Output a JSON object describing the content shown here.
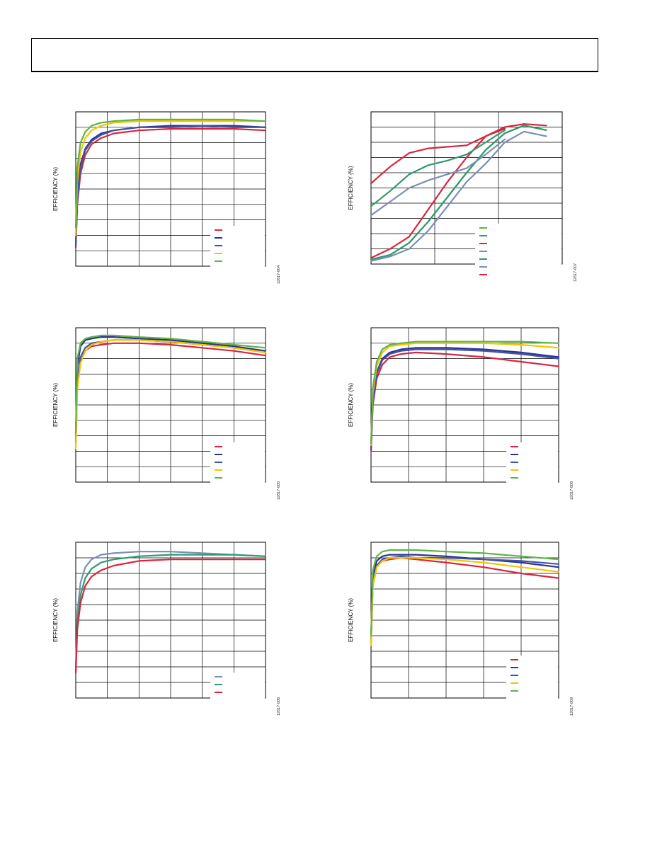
{
  "header": {
    "title": ""
  },
  "charts": [
    {
      "type": "line",
      "ylabel": "EFFICIENCY (%)",
      "code": "12617-004",
      "ylim": [
        0,
        100
      ],
      "xlim": [
        0,
        6
      ],
      "series": [
        {
          "color": "#d7263d",
          "x": [
            0.0,
            0.05,
            0.15,
            0.3,
            0.5,
            0.8,
            1.2,
            2,
            3,
            4,
            5,
            6
          ],
          "y": [
            12,
            40,
            60,
            72,
            79,
            83,
            86,
            88,
            89,
            89,
            89,
            88
          ]
        },
        {
          "color": "#2e3192",
          "x": [
            0.0,
            0.05,
            0.15,
            0.3,
            0.5,
            0.8,
            1.2,
            2,
            3,
            4,
            5,
            6
          ],
          "y": [
            14,
            45,
            66,
            76,
            82,
            86,
            88,
            90,
            91,
            91,
            91,
            90
          ]
        },
        {
          "color": "#3c55a5",
          "x": [
            0.0,
            0.05,
            0.15,
            0.3,
            0.5,
            0.8,
            1.2,
            2,
            3,
            4,
            5,
            6
          ],
          "y": [
            13,
            43,
            64,
            75,
            81,
            85,
            88,
            90,
            90,
            91,
            90,
            90
          ]
        },
        {
          "color": "#f5c400",
          "x": [
            0.0,
            0.05,
            0.15,
            0.3,
            0.5,
            0.8,
            1.2,
            2,
            3,
            4,
            5,
            6
          ],
          "y": [
            20,
            56,
            74,
            83,
            88,
            91,
            93,
            94,
            94,
            94,
            94,
            94
          ]
        },
        {
          "color": "#5fb446",
          "x": [
            0.0,
            0.05,
            0.15,
            0.3,
            0.5,
            0.8,
            1.2,
            2,
            3,
            4,
            5,
            6
          ],
          "y": [
            25,
            64,
            80,
            87,
            91,
            93,
            94,
            95,
            95,
            95,
            95,
            94
          ]
        }
      ]
    },
    {
      "type": "line",
      "ylabel": "EFFICIENCY (%)",
      "code": "12617-007",
      "ylim": [
        0,
        100
      ],
      "xlim": [
        0,
        3
      ],
      "series": [
        {
          "color": "#5fb446",
          "x": [
            0,
            0.3,
            0.6,
            0.9,
            1.2,
            1.5,
            1.8,
            2.1,
            2.4,
            2.75
          ],
          "y": [
            3,
            6,
            14,
            28,
            44,
            60,
            75,
            86,
            91,
            88
          ]
        },
        {
          "color": "#2f9a6e",
          "x": [
            0,
            0.3,
            0.6,
            0.9,
            1.2,
            1.5,
            1.8,
            2.1,
            2.4,
            2.75
          ],
          "y": [
            3,
            6,
            14,
            28,
            44,
            60,
            75,
            86,
            91,
            88
          ]
        },
        {
          "color": "#d7263d",
          "x": [
            0,
            0.3,
            0.6,
            0.9,
            1.2,
            1.5,
            1.8,
            2.1,
            2.4,
            2.75
          ],
          "y": [
            4,
            10,
            18,
            36,
            54,
            70,
            84,
            90,
            92,
            91
          ]
        },
        {
          "color": "#7a8fb5",
          "x": [
            0,
            0.3,
            0.6,
            0.9,
            1.2,
            1.5,
            1.8,
            2.1,
            2.4,
            2.75
          ],
          "y": [
            2,
            5,
            10,
            22,
            38,
            54,
            66,
            80,
            87,
            84
          ]
        },
        {
          "color": "#2f9a6e",
          "x": [
            0,
            0.3,
            0.6,
            0.9,
            1.2,
            1.5,
            1.8,
            2.1
          ],
          "y": [
            38,
            48,
            59,
            65,
            68,
            72,
            80,
            88
          ]
        },
        {
          "color": "#7a8fb5",
          "x": [
            0,
            0.3,
            0.6,
            0.9,
            1.2,
            1.5,
            1.8,
            2.1
          ],
          "y": [
            32,
            41,
            50,
            55,
            59,
            63,
            72,
            82
          ]
        },
        {
          "color": "#d7263d",
          "x": [
            0,
            0.3,
            0.6,
            0.9,
            1.2,
            1.5,
            1.8,
            2.1
          ],
          "y": [
            53,
            64,
            73,
            76,
            77,
            78,
            84,
            89
          ]
        }
      ]
    },
    {
      "type": "line",
      "ylabel": "EFFICIENCY (%)",
      "code": "12617-005",
      "ylim": [
        0,
        100
      ],
      "xlim": [
        0,
        6
      ],
      "series": [
        {
          "color": "#d7263d",
          "x": [
            0.0,
            0.05,
            0.15,
            0.3,
            0.5,
            0.8,
            1.2,
            2,
            3,
            4,
            5,
            6
          ],
          "y": [
            25,
            62,
            78,
            85,
            88,
            89,
            90,
            90,
            89,
            87,
            85,
            82
          ]
        },
        {
          "color": "#2e3192",
          "x": [
            0.0,
            0.05,
            0.15,
            0.3,
            0.5,
            0.8,
            1.2,
            2,
            3,
            4,
            5,
            6
          ],
          "y": [
            30,
            75,
            88,
            92,
            93,
            94,
            94,
            93,
            92,
            90,
            88,
            85
          ]
        },
        {
          "color": "#3c55a5",
          "x": [
            0.0,
            0.05,
            0.15,
            0.3,
            0.5,
            0.8,
            1.2,
            2,
            3,
            4,
            5,
            6
          ],
          "y": [
            26,
            66,
            81,
            87,
            90,
            91,
            92,
            92,
            91,
            89,
            87,
            84
          ]
        },
        {
          "color": "#f5c400",
          "x": [
            0.0,
            0.05,
            0.15,
            0.3,
            0.5,
            0.8,
            1.2,
            2,
            3,
            4,
            5,
            6
          ],
          "y": [
            22,
            60,
            77,
            85,
            89,
            91,
            92,
            92,
            91,
            89,
            87,
            84
          ]
        },
        {
          "color": "#5fb446",
          "x": [
            0.0,
            0.05,
            0.15,
            0.3,
            0.5,
            0.8,
            1.2,
            2,
            3,
            4,
            5,
            6
          ],
          "y": [
            32,
            80,
            90,
            93,
            94,
            95,
            95,
            94,
            93,
            91,
            89,
            87
          ]
        }
      ]
    },
    {
      "type": "line",
      "ylabel": "EFFICIENCY (%)",
      "code": "12617-008",
      "ylim": [
        0,
        100
      ],
      "xlim": [
        0,
        5
      ],
      "series": [
        {
          "color": "#d7263d",
          "x": [
            0.0,
            0.05,
            0.15,
            0.3,
            0.5,
            0.8,
            1.2,
            2,
            3,
            4,
            5
          ],
          "y": [
            20,
            50,
            67,
            76,
            81,
            83,
            84,
            83,
            81,
            78,
            75
          ]
        },
        {
          "color": "#2e3192",
          "x": [
            0.0,
            0.05,
            0.15,
            0.3,
            0.5,
            0.8,
            1.2,
            2,
            3,
            4,
            5
          ],
          "y": [
            22,
            54,
            71,
            80,
            84,
            86,
            87,
            87,
            86,
            84,
            81
          ]
        },
        {
          "color": "#3c55a5",
          "x": [
            0.0,
            0.05,
            0.15,
            0.3,
            0.5,
            0.8,
            1.2,
            2,
            3,
            4,
            5
          ],
          "y": [
            21,
            53,
            70,
            79,
            83,
            85,
            86,
            86,
            85,
            83,
            80
          ]
        },
        {
          "color": "#f5c400",
          "x": [
            0.0,
            0.05,
            0.15,
            0.3,
            0.5,
            0.8,
            1.2,
            2,
            3,
            4,
            5
          ],
          "y": [
            24,
            58,
            75,
            84,
            88,
            89,
            90,
            90,
            90,
            89,
            87
          ]
        },
        {
          "color": "#5fb446",
          "x": [
            0.0,
            0.05,
            0.15,
            0.3,
            0.5,
            0.8,
            1.2,
            2,
            3,
            4,
            5
          ],
          "y": [
            25,
            61,
            78,
            86,
            89,
            90,
            91,
            91,
            91,
            91,
            90
          ]
        }
      ]
    },
    {
      "type": "line",
      "ylabel": "EFFICIENCY (%)",
      "code": "12617-006",
      "ylim": [
        0,
        100
      ],
      "xlim": [
        0,
        6
      ],
      "series": [
        {
          "color": "#7a8fb5",
          "x": [
            0.0,
            0.05,
            0.15,
            0.3,
            0.5,
            0.8,
            1.2,
            2,
            3,
            4,
            5,
            6
          ],
          "y": [
            18,
            55,
            74,
            84,
            89,
            92,
            93,
            94,
            94,
            93,
            92,
            91
          ]
        },
        {
          "color": "#2f9a6e",
          "x": [
            0.0,
            0.05,
            0.15,
            0.3,
            0.5,
            0.8,
            1.2,
            2,
            3,
            4,
            5,
            6
          ],
          "y": [
            17,
            48,
            66,
            77,
            83,
            87,
            89,
            91,
            92,
            92,
            92,
            91
          ]
        },
        {
          "color": "#d7263d",
          "x": [
            0.0,
            0.05,
            0.15,
            0.3,
            0.5,
            0.8,
            1.2,
            2,
            3,
            4,
            5,
            6
          ],
          "y": [
            16,
            44,
            61,
            72,
            78,
            82,
            85,
            88,
            89,
            89,
            89,
            89
          ]
        }
      ]
    },
    {
      "type": "line",
      "ylabel": "EFFICIENCY (%)",
      "code": "12617-009",
      "ylim": [
        0,
        100
      ],
      "xlim": [
        0,
        5
      ],
      "series": [
        {
          "color": "#d7263d",
          "x": [
            0.0,
            0.05,
            0.15,
            0.3,
            0.5,
            0.8,
            1.2,
            2,
            3,
            4,
            5
          ],
          "y": [
            35,
            72,
            84,
            88,
            89,
            90,
            89,
            87,
            84,
            80,
            77
          ]
        },
        {
          "color": "#2e3192",
          "x": [
            0.0,
            0.05,
            0.15,
            0.3,
            0.5,
            0.8,
            1.2,
            2,
            3,
            4,
            5
          ],
          "y": [
            38,
            78,
            88,
            91,
            92,
            92,
            92,
            91,
            89,
            87,
            84
          ]
        },
        {
          "color": "#3c55a5",
          "x": [
            0.0,
            0.05,
            0.15,
            0.3,
            0.5,
            0.8,
            1.2,
            2,
            3,
            4,
            5
          ],
          "y": [
            36,
            74,
            85,
            89,
            90,
            91,
            90,
            90,
            89,
            88,
            86
          ]
        },
        {
          "color": "#f5c400",
          "x": [
            0.0,
            0.05,
            0.15,
            0.3,
            0.5,
            0.8,
            1.2,
            2,
            3,
            4,
            5
          ],
          "y": [
            34,
            72,
            84,
            88,
            90,
            90,
            90,
            89,
            87,
            84,
            81
          ]
        },
        {
          "color": "#5fb446",
          "x": [
            0.0,
            0.05,
            0.15,
            0.3,
            0.5,
            0.8,
            1.2,
            2,
            3,
            4,
            5
          ],
          "y": [
            40,
            82,
            91,
            94,
            95,
            95,
            95,
            94,
            93,
            91,
            89
          ]
        }
      ]
    }
  ]
}
